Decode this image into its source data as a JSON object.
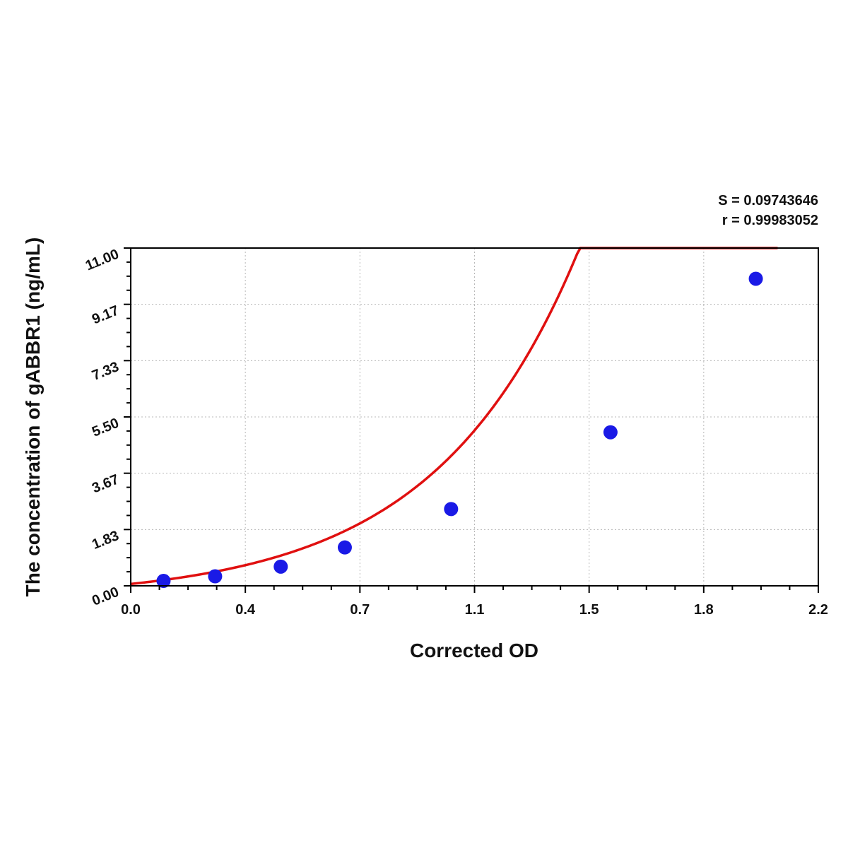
{
  "chart_data": {
    "type": "scatter",
    "title": "",
    "xlabel": "Corrected OD",
    "ylabel": "The concentration of gABBR1 (ng/mL)",
    "xlim": [
      0.0,
      2.2
    ],
    "ylim": [
      0.0,
      11.0
    ],
    "x_tick_labels": [
      "0.0",
      "0.4",
      "0.7",
      "1.1",
      "1.5",
      "1.8",
      "2.2"
    ],
    "y_tick_labels": [
      "0.00",
      "1.83",
      "3.67",
      "5.50",
      "7.33",
      "9.17",
      "11.00"
    ],
    "grid": true,
    "annotations": [
      "S = 0.09743646",
      "r = 0.99983052"
    ],
    "series": [
      {
        "kind": "points",
        "color": "#1a1ae6",
        "x": [
          0.105,
          0.27,
          0.48,
          0.685,
          1.025,
          1.535,
          2.0
        ],
        "y": [
          0.16,
          0.31,
          0.625,
          1.25,
          2.5,
          5.0,
          10.0
        ]
      },
      {
        "kind": "fitted-curve",
        "color": "#e01010",
        "x_range": [
          0.0,
          2.07
        ],
        "a": 0.06,
        "b": 2.18,
        "c": 0.5
      }
    ]
  }
}
